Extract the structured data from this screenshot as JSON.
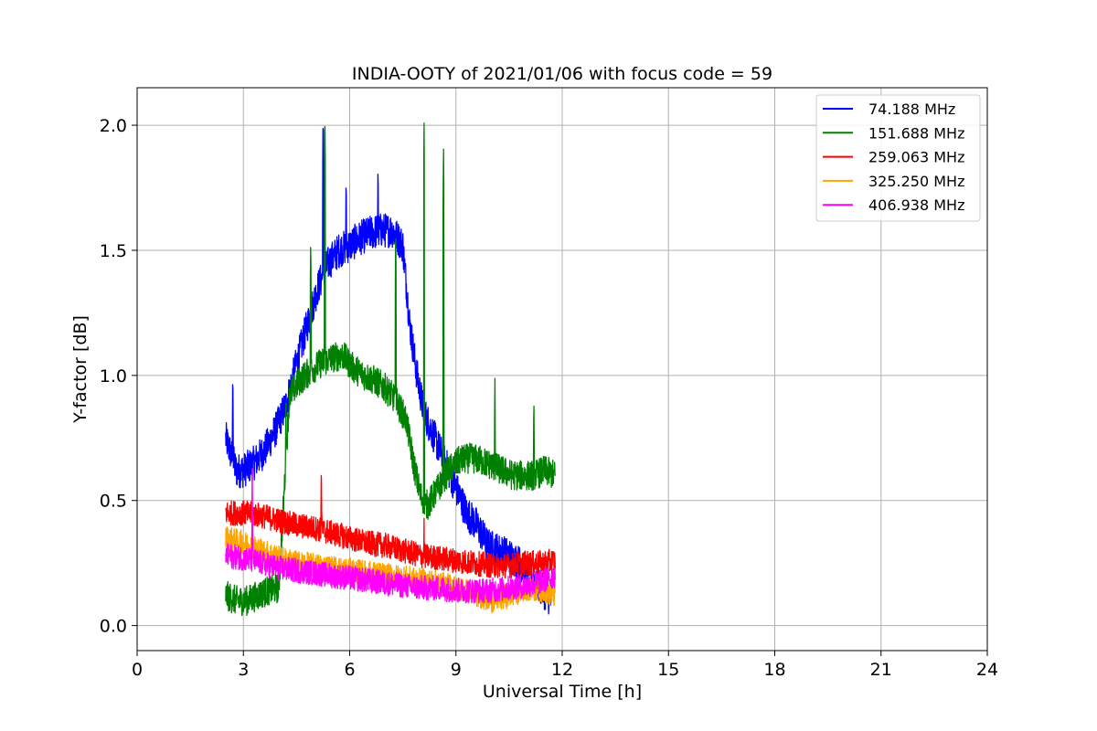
{
  "chart_data": {
    "type": "line",
    "title": "INDIA-OOTY of 2021/01/06 with focus code = 59",
    "xlabel": "Universal Time [h]",
    "ylabel": "Y-factor [dB]",
    "xlim": [
      0,
      24
    ],
    "ylim": [
      -0.1,
      2.15
    ],
    "xticks": [
      0,
      3,
      6,
      9,
      12,
      15,
      18,
      21,
      24
    ],
    "yticks": [
      0.0,
      0.5,
      1.0,
      1.5,
      2.0
    ],
    "xtick_labels": [
      "0",
      "3",
      "6",
      "9",
      "12",
      "15",
      "18",
      "21",
      "24"
    ],
    "ytick_labels": [
      "0.0",
      "0.5",
      "1.0",
      "1.5",
      "2.0"
    ],
    "grid": true,
    "legend_position": "top-right",
    "series": [
      {
        "name": " 74.188 MHz",
        "color": "#0000ff",
        "x": [
          2.5,
          2.8,
          3.0,
          3.3,
          3.6,
          3.9,
          4.2,
          4.5,
          4.8,
          5.1,
          5.4,
          5.7,
          6.0,
          6.3,
          6.6,
          6.9,
          7.2,
          7.5,
          7.7,
          7.9,
          8.1,
          8.4,
          8.7,
          9.0,
          9.3,
          9.6,
          9.9,
          10.2,
          10.5,
          10.8,
          11.1,
          11.4,
          11.7
        ],
        "values": [
          0.75,
          0.62,
          0.62,
          0.65,
          0.7,
          0.78,
          0.88,
          1.05,
          1.2,
          1.35,
          1.45,
          1.5,
          1.52,
          1.55,
          1.57,
          1.58,
          1.58,
          1.52,
          1.2,
          1.0,
          0.85,
          0.75,
          0.65,
          0.55,
          0.45,
          0.4,
          0.32,
          0.3,
          0.28,
          0.25,
          0.2,
          0.15,
          0.1
        ],
        "spikes": [
          [
            2.7,
            1.02
          ],
          [
            5.25,
            2.05
          ],
          [
            5.9,
            1.8
          ],
          [
            6.8,
            1.85
          ]
        ]
      },
      {
        "name": "151.688 MHz",
        "color": "#008000",
        "x": [
          2.5,
          2.8,
          3.1,
          3.4,
          3.7,
          4.0,
          4.3,
          4.6,
          4.9,
          5.2,
          5.5,
          5.8,
          6.1,
          6.4,
          6.7,
          7.0,
          7.3,
          7.6,
          7.8,
          8.0,
          8.2,
          8.5,
          8.8,
          9.1,
          9.4,
          9.7,
          10.0,
          10.3,
          10.6,
          10.9,
          11.2,
          11.5,
          11.8
        ],
        "values": [
          0.12,
          0.1,
          0.1,
          0.12,
          0.14,
          0.15,
          0.92,
          0.98,
          1.02,
          1.05,
          1.07,
          1.08,
          1.03,
          1.0,
          0.98,
          0.95,
          0.9,
          0.82,
          0.65,
          0.52,
          0.48,
          0.55,
          0.62,
          0.66,
          0.67,
          0.66,
          0.64,
          0.62,
          0.6,
          0.6,
          0.6,
          0.62,
          0.6
        ],
        "spikes": [
          [
            4.2,
            0.9
          ],
          [
            4.9,
            1.55
          ],
          [
            5.3,
            2.06
          ],
          [
            7.3,
            1.6
          ],
          [
            8.1,
            2.01
          ],
          [
            8.65,
            1.93
          ],
          [
            10.1,
            1.0
          ],
          [
            11.2,
            0.92
          ]
        ]
      },
      {
        "name": "259.063 MHz",
        "color": "#ff0000",
        "x": [
          2.5,
          3.0,
          3.5,
          4.0,
          4.5,
          5.0,
          5.5,
          6.0,
          6.5,
          7.0,
          7.5,
          8.0,
          8.5,
          9.0,
          9.5,
          10.0,
          10.5,
          11.0,
          11.5,
          11.8
        ],
        "values": [
          0.45,
          0.45,
          0.44,
          0.42,
          0.4,
          0.39,
          0.37,
          0.35,
          0.33,
          0.32,
          0.3,
          0.28,
          0.27,
          0.26,
          0.25,
          0.24,
          0.24,
          0.25,
          0.25,
          0.26
        ],
        "spikes": [
          [
            5.2,
            0.66
          ],
          [
            8.1,
            0.43
          ]
        ]
      },
      {
        "name": "325.250 MHz",
        "color": "#ffa500",
        "x": [
          2.5,
          3.0,
          3.5,
          4.0,
          4.5,
          5.0,
          5.5,
          6.0,
          6.5,
          7.0,
          7.5,
          8.0,
          8.5,
          9.0,
          9.5,
          10.0,
          10.5,
          11.0,
          11.5,
          11.8
        ],
        "values": [
          0.35,
          0.33,
          0.3,
          0.27,
          0.25,
          0.24,
          0.23,
          0.22,
          0.21,
          0.2,
          0.19,
          0.18,
          0.17,
          0.15,
          0.13,
          0.1,
          0.12,
          0.15,
          0.14,
          0.12
        ],
        "spikes": []
      },
      {
        "name": "406.938 MHz",
        "color": "#ff00ff",
        "x": [
          2.5,
          3.0,
          3.5,
          4.0,
          4.5,
          5.0,
          5.5,
          6.0,
          6.5,
          7.0,
          7.5,
          8.0,
          8.5,
          9.0,
          9.5,
          10.0,
          10.5,
          11.0,
          11.5,
          11.8
        ],
        "values": [
          0.28,
          0.27,
          0.25,
          0.23,
          0.22,
          0.21,
          0.2,
          0.19,
          0.18,
          0.17,
          0.16,
          0.15,
          0.15,
          0.14,
          0.14,
          0.14,
          0.15,
          0.16,
          0.18,
          0.2
        ],
        "spikes": [
          [
            3.25,
            0.64
          ]
        ]
      }
    ]
  }
}
